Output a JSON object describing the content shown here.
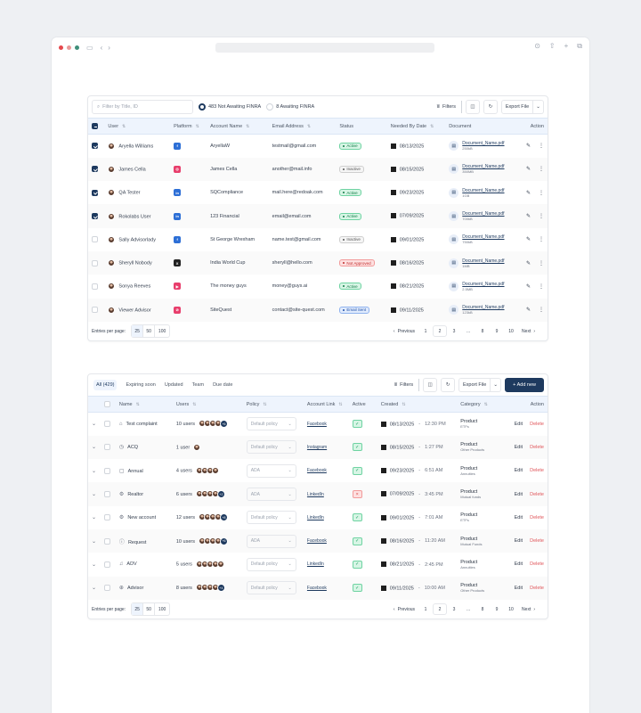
{
  "browser": {
    "dots": [
      "#e5484d",
      "#e89a9a",
      "#3f8f7a"
    ],
    "icons": [
      "sidebar-icon",
      "back-icon",
      "forward-icon",
      "download-icon",
      "share-icon",
      "new-tab-icon",
      "tabs-icon"
    ]
  },
  "table1": {
    "search_placeholder": "Filter by Title, ID",
    "radio1": "483 Not Awaiting FINRA",
    "radio2": "8 Awaiting FINRA",
    "filters": "Filters",
    "export": "Export File",
    "columns": [
      "User",
      "Platform",
      "Account Name",
      "Email Address",
      "Status",
      "Needed By Date",
      "Document",
      "Action"
    ],
    "rows": [
      {
        "checked": true,
        "user": "Aryella Williams",
        "platform": "facebook",
        "account": "AryellaW",
        "email": "testmail@gmail.com",
        "status": "Active",
        "date": "08/13/2025",
        "doc": "Document_Name.pdf",
        "size": "250kB"
      },
      {
        "checked": true,
        "user": "James Cella",
        "platform": "instagram",
        "account": "James Cella",
        "email": "another@mail.info",
        "status": "Inactive",
        "date": "08/15/2025",
        "doc": "Document_Name.pdf",
        "size": "350MB"
      },
      {
        "checked": true,
        "user": "QA Tester",
        "platform": "linkedin",
        "account": "SQCompliance",
        "email": "mail.here@redoak.com",
        "status": "Active",
        "date": "09/23/2025",
        "doc": "Document_Name.pdf",
        "size": "1GB"
      },
      {
        "checked": true,
        "user": "Rokolabs User",
        "platform": "linkedin",
        "account": "123 Financial",
        "email": "email@email.com",
        "status": "Active",
        "date": "07/09/2025",
        "doc": "Document_Name.pdf",
        "size": "700kB"
      },
      {
        "checked": false,
        "user": "Sally Advisorlady",
        "platform": "facebook",
        "account": "St George Wrexham",
        "email": "name.test@gmail.com",
        "status": "Inactive",
        "date": "09/01/2025",
        "doc": "Document_Name.pdf",
        "size": "750kB"
      },
      {
        "checked": false,
        "user": "Sheryll Nobody",
        "platform": "x",
        "account": "India World Cup",
        "email": "sheryll@hello.com",
        "status": "Not Approved",
        "date": "08/16/2025",
        "doc": "Document_Name.pdf",
        "size": "1MB"
      },
      {
        "checked": false,
        "user": "Sonya Reeves",
        "platform": "youtube",
        "account": "The money guys",
        "email": "money@guys.ai",
        "status": "Active",
        "date": "08/21/2025",
        "doc": "Document_Name.pdf",
        "size": "2.5MB"
      },
      {
        "checked": false,
        "user": "Viewer Advisor",
        "platform": "website",
        "account": "SiteQuest",
        "email": "contact@site-quest.com",
        "status": "Email Sent",
        "date": "09/11/2025",
        "doc": "Document_Name.pdf",
        "size": "123kB"
      }
    ],
    "footer": {
      "entries_label": "Entries per page:",
      "sizes": [
        "25",
        "50",
        "100"
      ],
      "prev": "Previous",
      "pages": [
        "1",
        "2",
        "3",
        "...",
        "8",
        "9",
        "10"
      ],
      "next": "Next"
    }
  },
  "table2": {
    "tabs": [
      "All (429)",
      "Expiring soon",
      "Updated",
      "Team",
      "Due date"
    ],
    "filters": "Filters",
    "export": "Export File",
    "add_new": "+ Add new",
    "columns": [
      "Name",
      "Users",
      "Policy",
      "Account Link",
      "Active",
      "Created",
      "Category",
      "Action"
    ],
    "rows": [
      {
        "name": "Test complaint",
        "icon": "bank-icon",
        "users": "10 users",
        "avatars": 4,
        "more": "+6",
        "policy": "Default policy",
        "link": "Facebook",
        "active": true,
        "date": "08/13/2025",
        "time": "12:30 PM",
        "cat": "Product",
        "sub": "ETFs"
      },
      {
        "name": "ACQ",
        "icon": "clock-icon",
        "users": "1 user",
        "avatars": 1,
        "more": "",
        "policy": "Default policy",
        "link": "Instagram",
        "active": true,
        "date": "08/15/2025",
        "time": "1:27 PM",
        "cat": "Product",
        "sub": "Other Products"
      },
      {
        "name": "Annual",
        "icon": "chat-icon",
        "users": "4 users",
        "avatars": 4,
        "more": "",
        "policy": "ADA",
        "link": "Facebook",
        "active": true,
        "date": "09/23/2025",
        "time": "6:51 AM",
        "cat": "Product",
        "sub": "Annuities"
      },
      {
        "name": "Realtor",
        "icon": "gear-icon",
        "users": "6 users",
        "avatars": 4,
        "more": "+2",
        "policy": "ADA",
        "link": "LinkedIn",
        "active": false,
        "date": "07/09/2025",
        "time": "3:45 PM",
        "cat": "Product",
        "sub": "Mutual funds"
      },
      {
        "name": "New account",
        "icon": "gear-icon",
        "users": "12 users",
        "avatars": 4,
        "more": "+8",
        "policy": "Default policy",
        "link": "LinkedIn",
        "active": true,
        "date": "09/01/2025",
        "time": "7:01 AM",
        "cat": "Product",
        "sub": "ETFs"
      },
      {
        "name": "Request",
        "icon": "info-icon",
        "users": "10 users",
        "avatars": 4,
        "more": "+6",
        "policy": "ADA",
        "link": "Facebook",
        "active": true,
        "date": "08/16/2025",
        "time": "11:20 AM",
        "cat": "Product",
        "sub": "Mutual Funds"
      },
      {
        "name": "ADV",
        "icon": "bell-icon",
        "users": "5 users",
        "avatars": 5,
        "more": "",
        "policy": "Default policy",
        "link": "LinkedIn",
        "active": true,
        "date": "08/21/2025",
        "time": "2:45 PM",
        "cat": "Product",
        "sub": "Annuities"
      },
      {
        "name": "Advisor",
        "icon": "globe-icon",
        "users": "8 users",
        "avatars": 4,
        "more": "+4",
        "policy": "Default policy",
        "link": "Facebook",
        "active": true,
        "date": "09/11/2025",
        "time": "10:00 AM",
        "cat": "Product",
        "sub": "Other Products"
      }
    ],
    "row_actions": {
      "edit": "Edit",
      "delete": "Delete"
    },
    "footer": {
      "entries_label": "Entries per page:",
      "sizes": [
        "25",
        "50",
        "100"
      ],
      "prev": "Previous",
      "pages": [
        "1",
        "2",
        "3",
        "...",
        "8",
        "9",
        "10"
      ],
      "next": "Next"
    }
  },
  "colors": {
    "primary": "#1e3a5f",
    "header_bg": "#eef4fd",
    "active": "#0f9d58",
    "danger": "#e0565b"
  }
}
